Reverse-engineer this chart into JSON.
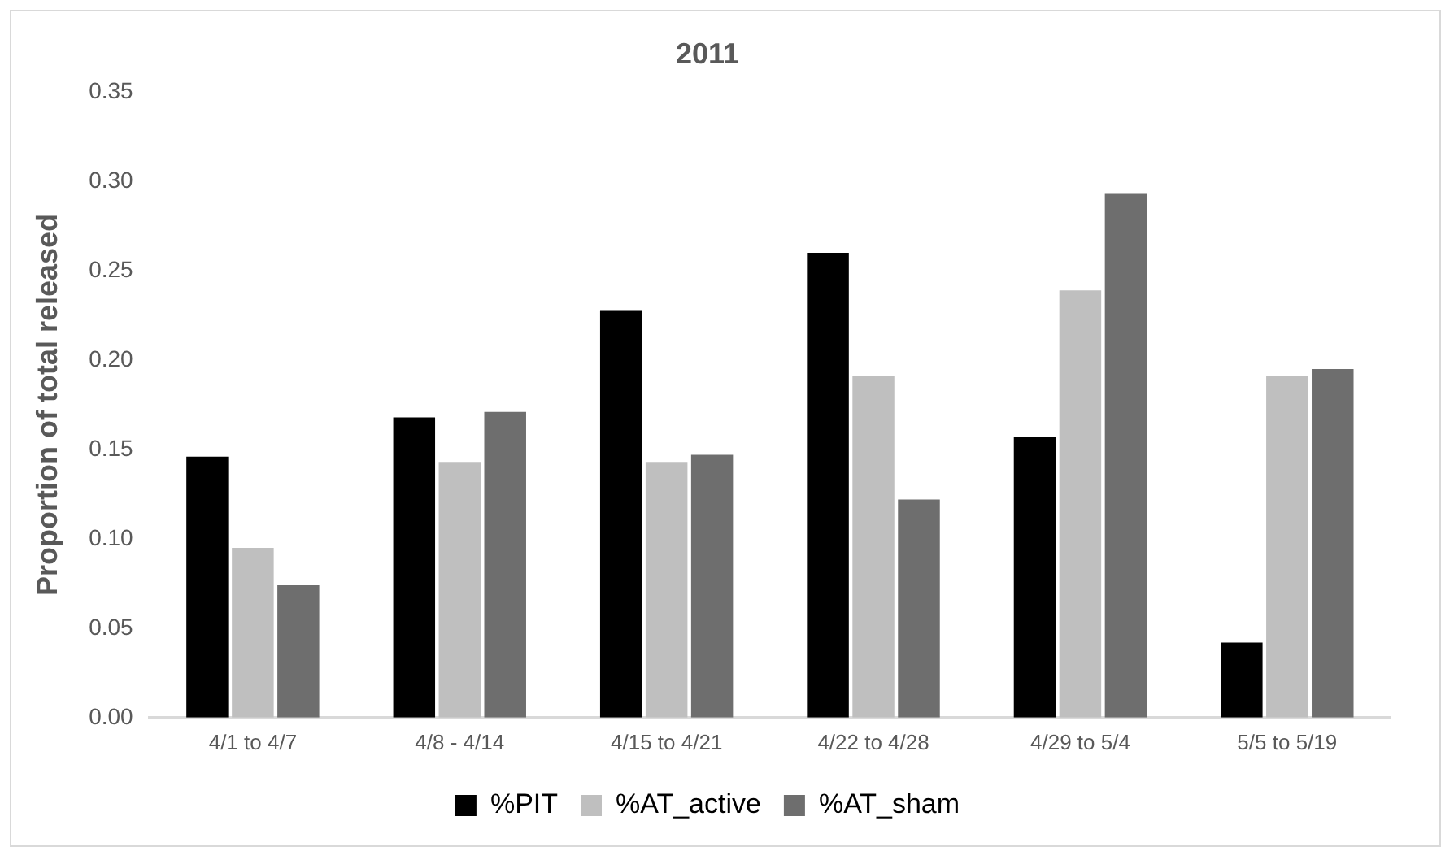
{
  "chart_data": {
    "type": "bar",
    "title": "2011",
    "ylabel": "Proportion of total released",
    "categories": [
      "4/1 to 4/7",
      "4/8 - 4/14",
      "4/15 to 4/21",
      "4/22 to 4/28",
      "4/29 to 5/4",
      "5/5 to 5/19"
    ],
    "series": [
      {
        "name": "%PIT",
        "color": "#000000",
        "values": [
          0.146,
          0.168,
          0.228,
          0.26,
          0.157,
          0.042
        ]
      },
      {
        "name": "%AT_active",
        "color": "#bfbfbf",
        "values": [
          0.095,
          0.143,
          0.143,
          0.191,
          0.239,
          0.191
        ]
      },
      {
        "name": "%AT_sham",
        "color": "#6e6e6e",
        "values": [
          0.074,
          0.171,
          0.147,
          0.122,
          0.293,
          0.195
        ]
      }
    ],
    "ylim": [
      0,
      0.35
    ],
    "yticks": [
      {
        "value": 0,
        "label": "0.00"
      },
      0.05,
      {
        "value": 0.1,
        "label": "0.10"
      },
      0.15,
      {
        "value": 0.2,
        "label": "0.20"
      },
      0.25,
      {
        "value": 0.3,
        "label": "0.30"
      },
      0.35
    ],
    "grid": false,
    "legend": "bottom"
  }
}
